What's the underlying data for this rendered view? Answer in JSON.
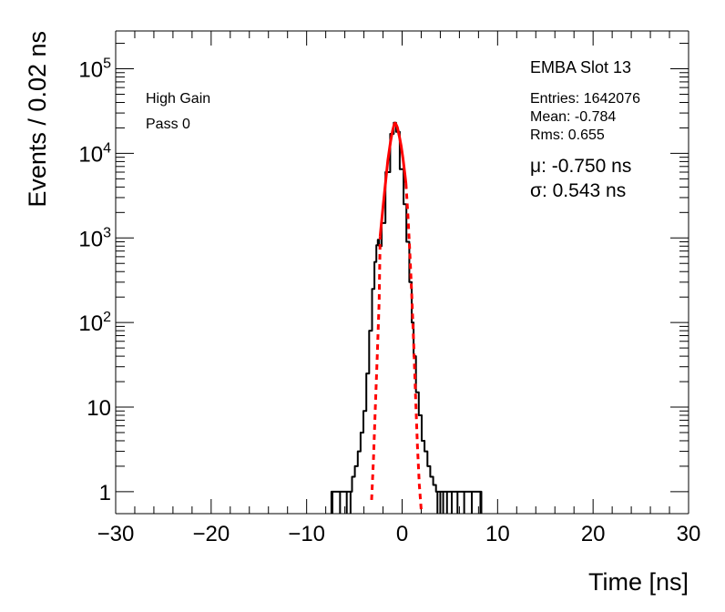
{
  "chart_data": {
    "type": "line",
    "scale": {
      "x": "linear",
      "y": "log"
    },
    "xlim": [
      -30,
      30
    ],
    "ylim": [
      0.55,
      280000
    ],
    "grid": false,
    "xlabel": "Time [ns]",
    "ylabel": "Events / 0.02 ns",
    "x_ticks": [
      -30,
      -20,
      -10,
      0,
      10,
      20,
      30
    ],
    "x_tick_labels": [
      "−30",
      "−20",
      "−10",
      "0",
      "10",
      "20",
      "30"
    ],
    "y_ticks": [
      {
        "value": 1,
        "base": "1",
        "exp": ""
      },
      {
        "value": 10,
        "base": "10",
        "exp": ""
      },
      {
        "value": 100,
        "base": "10",
        "exp": "2"
      },
      {
        "value": 1000,
        "base": "10",
        "exp": "3"
      },
      {
        "value": 10000,
        "base": "10",
        "exp": "4"
      },
      {
        "value": 100000,
        "base": "10",
        "exp": "5"
      }
    ],
    "annotations_left": [
      "High Gain",
      "Pass 0"
    ],
    "stats": {
      "title": "EMBA Slot 13",
      "lines": [
        "Entries: 1642076",
        "Mean: -0.784",
        "Rms: 0.655"
      ],
      "fit": [
        "μ: -0.750 ns",
        "σ: 0.543 ns"
      ]
    },
    "series": [
      {
        "color": "#000000",
        "style": "histogram",
        "x": [
          -7.3,
          -6.5,
          -5.8,
          -5.4,
          -5.1,
          -4.8,
          -4.5,
          -4.2,
          -3.9,
          -3.6,
          -3.3,
          -3.0,
          -2.8,
          -2.6,
          -2.5,
          -2.3,
          -2.0,
          -1.5,
          -1.0,
          -0.75,
          -0.5,
          0.0,
          0.3,
          0.6,
          0.9,
          1.1,
          1.3,
          1.6,
          1.9,
          2.2,
          2.5,
          2.8,
          3.1,
          3.4,
          3.7,
          4.0,
          4.3,
          4.7,
          5.2,
          5.8,
          6.5,
          7.3,
          8.2
        ],
        "y": [
          1,
          1,
          1,
          1,
          1.5,
          2,
          3,
          5,
          9,
          25,
          80,
          250,
          520,
          820,
          950,
          800,
          1500,
          6000,
          17000,
          23000,
          18000,
          6500,
          2500,
          900,
          300,
          100,
          40,
          15,
          8,
          4,
          3,
          2,
          1.5,
          1.2,
          1,
          1,
          1,
          1,
          1,
          1,
          1,
          1,
          1
        ]
      },
      {
        "color": "#ff0000",
        "style": "fit-solid",
        "x": [
          -2.3,
          -2.0,
          -1.7,
          -1.5,
          -1.2,
          -1.0,
          -0.9,
          -0.8,
          -0.75,
          -0.7,
          -0.6,
          -0.5,
          -0.3,
          -0.1,
          0.1,
          0.3,
          0.4
        ],
        "y": [
          1050,
          2300,
          5000,
          8200,
          14000,
          18500,
          20500,
          22400,
          22800,
          22600,
          21600,
          20200,
          16000,
          12100,
          8600,
          5600,
          4400
        ]
      },
      {
        "color": "#ff0000",
        "style": "fit-dashed",
        "x": [
          -3.2,
          -3.0,
          -2.8,
          -2.6,
          -2.4,
          -2.3
        ],
        "y": [
          0.8,
          2.5,
          10,
          40,
          180,
          1050
        ]
      },
      {
        "color": "#ff0000",
        "style": "fit-dashed",
        "x": [
          0.4,
          0.6,
          0.8,
          1.0,
          1.2,
          1.4,
          1.6,
          1.8,
          2.0
        ],
        "y": [
          4400,
          1900,
          700,
          220,
          60,
          14,
          3.5,
          1.2,
          0.6
        ]
      }
    ]
  }
}
